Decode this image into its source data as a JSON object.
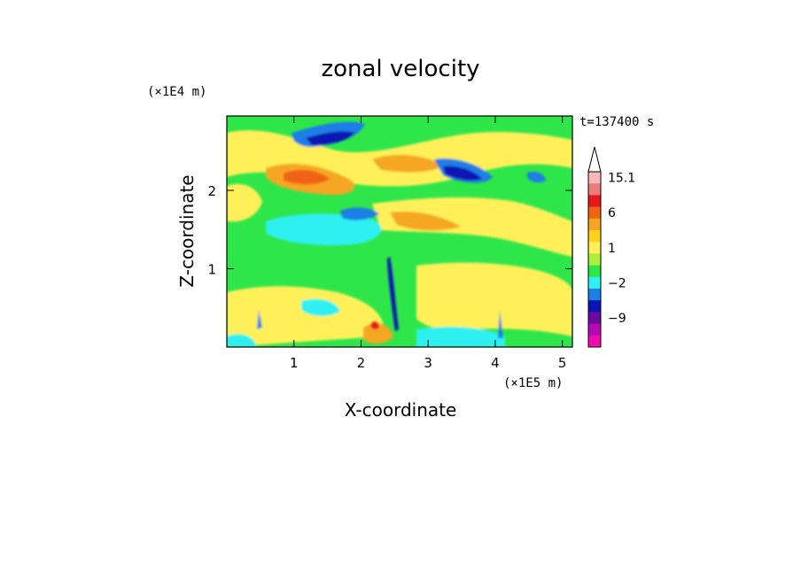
{
  "chart_data": {
    "type": "heatmap",
    "title": "zonal velocity",
    "xlabel": "X-coordinate",
    "ylabel": "Z-coordinate",
    "x_unit_label": "(×1E5 m)",
    "y_unit_label": "(×1E4 m)",
    "time_label": "t=137400 s",
    "xlim": [
      0,
      5.15
    ],
    "ylim": [
      0,
      2.95
    ],
    "xticks": [
      1,
      2,
      3,
      4,
      5
    ],
    "yticks": [
      1,
      2
    ],
    "colorbar": {
      "labels": [
        "15.1",
        "6",
        "1",
        "−2",
        "−9"
      ],
      "levels_top_to_bottom": [
        {
          "color": "#ffffff",
          "note": "arrow cap"
        },
        {
          "color": "#f7b8b8"
        },
        {
          "color": "#ee7b7b"
        },
        {
          "color": "#e41a1a"
        },
        {
          "color": "#f06414"
        },
        {
          "color": "#f5a623"
        },
        {
          "color": "#ffd21e"
        },
        {
          "color": "#fff05a"
        },
        {
          "color": "#aaf03c"
        },
        {
          "color": "#2ee64a"
        },
        {
          "color": "#2ef0f0"
        },
        {
          "color": "#1e7ee6"
        },
        {
          "color": "#0a14b4"
        },
        {
          "color": "#6a0aa0"
        },
        {
          "color": "#b40ab4"
        },
        {
          "color": "#f00ab4"
        }
      ]
    },
    "background_level_color": "#2ee64a"
  }
}
